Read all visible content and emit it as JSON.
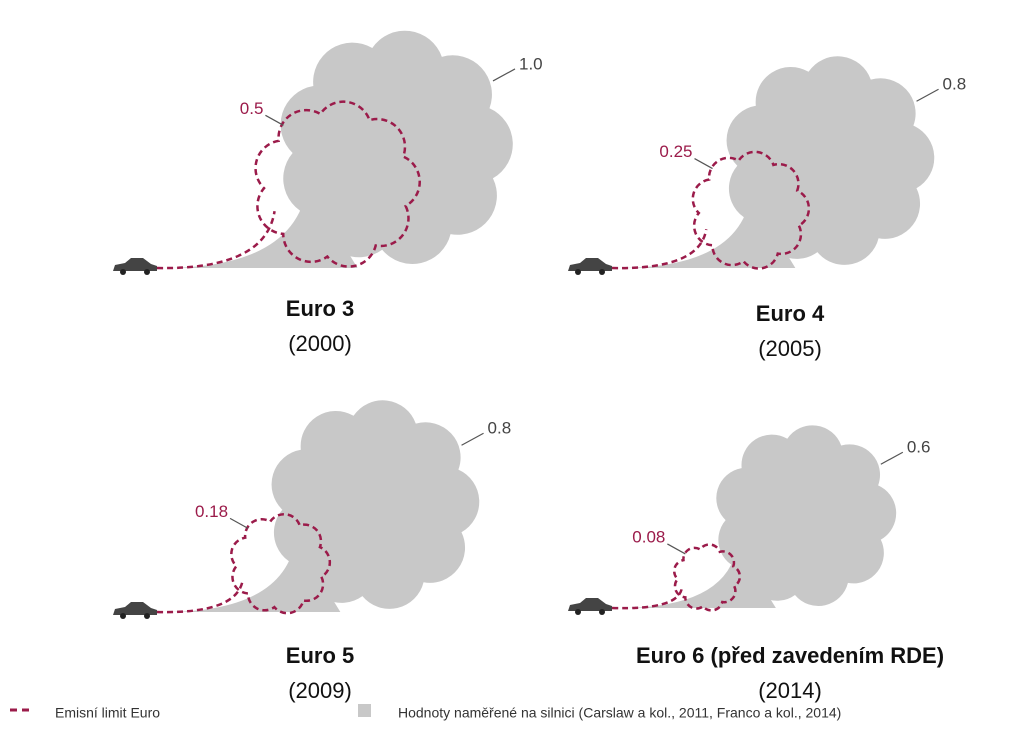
{
  "chart_data": {
    "type": "cloud",
    "categories": [
      "Euro 3",
      "Euro 4",
      "Euro 5",
      "Euro 6 (před zavedením RDE)"
    ],
    "subtitles": [
      "(2000)",
      "(2005)",
      "(2009)",
      "(2014)"
    ],
    "series": [
      {
        "name": "Emisní limit Euro",
        "color": "#9b1b4a",
        "values": [
          0.5,
          0.25,
          0.18,
          0.08
        ]
      },
      {
        "name": "Hodnoty naměřené na silnici (Carslaw a kol., 2011, Franco a kol., 2014)",
        "color": "#c8c8c8",
        "values": [
          1.0,
          0.8,
          0.8,
          0.6
        ],
        "value_labels": [
          "1.0",
          "0.8",
          "0.8",
          "0.6"
        ]
      }
    ]
  }
}
